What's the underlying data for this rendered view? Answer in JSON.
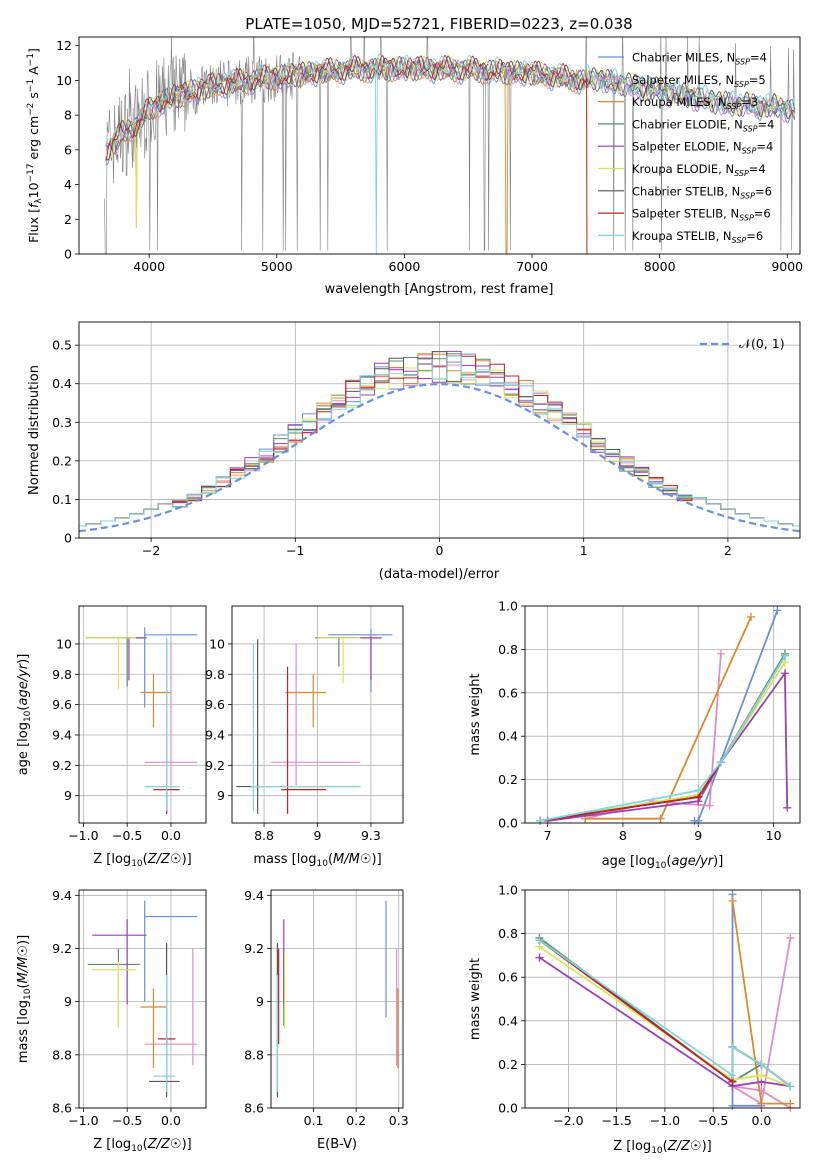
{
  "figure_title": "PLATE=1050, MJD=52721, FIBERID=0223, z=0.038",
  "model_colors": [
    "#6a8fdb",
    "#e38cc4",
    "#d98a2e",
    "#5a8c6a",
    "#9c3fb4",
    "#d6e65a",
    "#555555",
    "#c0202a",
    "#7fd6dd"
  ],
  "chart_data": [
    {
      "id": "spectrum",
      "type": "line",
      "title": "PLATE=1050, MJD=52721, FIBERID=0223, z=0.038",
      "xlabel": "wavelength [Angstrom, rest frame]",
      "ylabel": "Flux [f_λ 10^-17 erg cm^-2 s^-1 A^-1]",
      "xlim": [
        3450,
        9100
      ],
      "ylim": [
        0,
        12.5
      ],
      "xticks": [
        4000,
        5000,
        6000,
        7000,
        8000,
        9000
      ],
      "yticks": [
        0,
        2,
        4,
        6,
        8,
        10,
        12
      ],
      "grid": false,
      "legend_position": "top-right",
      "legend": [
        {
          "label": "Chabrier MILES, N",
          "sub": "SSP",
          "suffix": "=4"
        },
        {
          "label": "Salpeter MILES, N",
          "sub": "SSP",
          "suffix": "=5"
        },
        {
          "label": "Kroupa MILES, N",
          "sub": "SSP",
          "suffix": "=3"
        },
        {
          "label": "Chabrier ELODIE, N",
          "sub": "SSP",
          "suffix": "=4"
        },
        {
          "label": "Salpeter ELODIE, N",
          "sub": "SSP",
          "suffix": "=4"
        },
        {
          "label": "Kroupa ELODIE, N",
          "sub": "SSP",
          "suffix": "=4"
        },
        {
          "label": "Chabrier STELIB, N",
          "sub": "SSP",
          "suffix": "=6"
        },
        {
          "label": "Salpeter STELIB, N",
          "sub": "SSP",
          "suffix": "=6"
        },
        {
          "label": "Kroupa STELIB, N",
          "sub": "SSP",
          "suffix": "=6"
        }
      ],
      "data_color": "#808080",
      "continuum": {
        "wavelength": [
          3650,
          3700,
          3800,
          3900,
          4000,
          4100,
          4300,
          4500,
          5000,
          5500,
          6000,
          6500,
          7000,
          7400,
          7500,
          8000,
          8500,
          9000,
          9050
        ],
        "flux": [
          5.8,
          6.2,
          7.0,
          7.4,
          8.3,
          8.8,
          9.3,
          9.7,
          10.2,
          10.6,
          10.7,
          10.6,
          10.4,
          10.0,
          10.1,
          9.4,
          8.7,
          8.4,
          8.3
        ]
      },
      "model_cutoffs": {
        "x": [
          3660,
          3900,
          5780,
          6800,
          7430
        ]
      }
    },
    {
      "id": "residuals",
      "type": "histogram",
      "xlabel": "(data-model)/error",
      "ylabel": "Normed distribution",
      "xlim": [
        -2.5,
        2.5
      ],
      "ylim": [
        0,
        0.56
      ],
      "xticks": [
        -2,
        -1,
        0,
        1,
        2
      ],
      "yticks": [
        0.0,
        0.1,
        0.2,
        0.3,
        0.4,
        0.5
      ],
      "grid": true,
      "bin_width": 0.1,
      "reference_curve": {
        "label": "𝒩(0, 1)",
        "type": "normal",
        "mean": 0,
        "sigma": 1,
        "color": "#6a8fdb",
        "dash": true
      },
      "legend_position": "top-right"
    },
    {
      "id": "age-vs-Z",
      "type": "errorbar",
      "xlabel": "Z [log10(Z/Z☉)]",
      "ylabel": "age [log10(age/yr)]",
      "xlim": [
        -1.05,
        0.4
      ],
      "ylim": [
        8.82,
        10.25
      ],
      "xticks": [
        -1.0,
        -0.5,
        0.0
      ],
      "yticks": [
        9.0,
        9.2,
        9.4,
        9.6,
        9.8,
        10.0
      ],
      "grid": true,
      "points": [
        {
          "c": 0,
          "x": -0.3,
          "y": 10.06,
          "xl": -0.3,
          "xh": 0.3,
          "yl": 9.58,
          "yh": 10.11
        },
        {
          "c": 1,
          "x": 0.0,
          "y": 9.22,
          "xl": -0.3,
          "xh": 0.3,
          "yl": 9.07,
          "yh": 10.02
        },
        {
          "c": 2,
          "x": -0.2,
          "y": 9.68,
          "xl": -0.35,
          "xh": 0.0,
          "yl": 9.45,
          "yh": 9.8
        },
        {
          "c": 3,
          "x": -0.5,
          "y": 10.04,
          "xl": -0.98,
          "xh": -0.28,
          "yl": 9.72,
          "yh": 10.04
        },
        {
          "c": 4,
          "x": -0.48,
          "y": 10.04,
          "xl": -0.93,
          "xh": -0.28,
          "yl": 9.76,
          "yh": 10.04
        },
        {
          "c": 5,
          "x": -0.6,
          "y": 10.04,
          "xl": -0.98,
          "xh": -0.4,
          "yl": 9.7,
          "yh": 10.04
        },
        {
          "c": 6,
          "x": -0.05,
          "y": 9.06,
          "xl": -0.3,
          "xh": 0.05,
          "yl": 8.88,
          "yh": 10.03
        },
        {
          "c": 7,
          "x": -0.05,
          "y": 9.04,
          "xl": -0.2,
          "xh": 0.1,
          "yl": 8.88,
          "yh": 9.04
        },
        {
          "c": 8,
          "x": -0.05,
          "y": 9.06,
          "xl": -0.3,
          "xh": 0.1,
          "yl": 8.9,
          "yh": 10.04
        }
      ]
    },
    {
      "id": "age-vs-mass",
      "type": "errorbar",
      "xlabel": "mass [log10(M/M☉)]",
      "ylabel": "",
      "xlim": [
        8.6,
        9.4
      ],
      "ylim": [
        8.82,
        10.25
      ],
      "xticks": [
        8.75,
        9.0,
        9.25
      ],
      "yticks": [
        9.0,
        9.2,
        9.4,
        9.6,
        9.8,
        10.0
      ],
      "grid": true,
      "points": [
        {
          "c": 0,
          "x": 9.25,
          "y": 10.06,
          "xl": 9.05,
          "xh": 9.35,
          "yl": 9.68,
          "yh": 10.1
        },
        {
          "c": 1,
          "x": 8.9,
          "y": 9.22,
          "xl": 8.78,
          "xh": 9.2,
          "yl": 9.07,
          "yh": 10.0
        },
        {
          "c": 2,
          "x": 8.98,
          "y": 9.68,
          "xl": 8.85,
          "xh": 9.04,
          "yl": 9.45,
          "yh": 9.8
        },
        {
          "c": 3,
          "x": 9.1,
          "y": 10.04,
          "xl": 8.99,
          "xh": 9.18,
          "yl": 9.85,
          "yh": 10.04
        },
        {
          "c": 4,
          "x": 9.25,
          "y": 10.04,
          "xl": 9.0,
          "xh": 9.3,
          "yl": 9.76,
          "yh": 10.04
        },
        {
          "c": 5,
          "x": 9.12,
          "y": 10.04,
          "xl": 9.0,
          "xh": 9.2,
          "yl": 9.74,
          "yh": 10.04
        },
        {
          "c": 6,
          "x": 8.72,
          "y": 9.06,
          "xl": 8.62,
          "xh": 9.2,
          "yl": 8.88,
          "yh": 10.03
        },
        {
          "c": 7,
          "x": 8.86,
          "y": 9.04,
          "xl": 8.83,
          "xh": 9.04,
          "yl": 8.88,
          "yh": 9.85
        },
        {
          "c": 8,
          "x": 8.7,
          "y": 9.06,
          "xl": 8.69,
          "xh": 9.2,
          "yl": 8.9,
          "yh": 10.0
        }
      ]
    },
    {
      "id": "weight-vs-age",
      "type": "line",
      "xlabel": "age [log10(age/yr)]",
      "ylabel": "mass weight",
      "xlim": [
        6.7,
        10.35
      ],
      "ylim": [
        0,
        1
      ],
      "xticks": [
        7,
        8,
        9,
        10
      ],
      "yticks": [
        0.0,
        0.2,
        0.4,
        0.6,
        0.8,
        1.0
      ],
      "grid": true,
      "series": [
        {
          "c": 0,
          "x": [
            8.95,
            9.0,
            10.05
          ],
          "y": [
            0.01,
            0.01,
            0.98
          ]
        },
        {
          "c": 1,
          "x": [
            7.5,
            8.4,
            9.15,
            9.3
          ],
          "y": [
            0.02,
            0.1,
            0.08,
            0.78
          ]
        },
        {
          "c": 2,
          "x": [
            7.5,
            8.5,
            9.7
          ],
          "y": [
            0.02,
            0.02,
            0.95
          ]
        },
        {
          "c": 3,
          "x": [
            6.9,
            9.0,
            9.3,
            10.15
          ],
          "y": [
            0.01,
            0.12,
            0.28,
            0.78
          ]
        },
        {
          "c": 4,
          "x": [
            7.0,
            9.0,
            9.3,
            10.15,
            10.18
          ],
          "y": [
            0.01,
            0.1,
            0.28,
            0.69,
            0.07
          ]
        },
        {
          "c": 5,
          "x": [
            6.9,
            9.0,
            9.3,
            10.15
          ],
          "y": [
            0.01,
            0.13,
            0.28,
            0.74
          ]
        },
        {
          "c": 6,
          "x": [
            6.9,
            9.0,
            9.3,
            10.15
          ],
          "y": [
            0.01,
            0.12,
            0.28,
            0.77
          ]
        },
        {
          "c": 7,
          "x": [
            6.9,
            9.0,
            9.3,
            10.15
          ],
          "y": [
            0.01,
            0.12,
            0.28,
            0.77
          ]
        },
        {
          "c": 8,
          "x": [
            6.9,
            9.0,
            9.3,
            10.15
          ],
          "y": [
            0.01,
            0.15,
            0.28,
            0.77
          ]
        }
      ]
    },
    {
      "id": "mass-vs-Z",
      "type": "errorbar",
      "xlabel": "Z [log10(Z/Z☉)]",
      "ylabel": "mass [log10(M/M☉)]",
      "xlim": [
        -1.05,
        0.4
      ],
      "ylim": [
        8.6,
        9.42
      ],
      "xticks": [
        -1.0,
        -0.5,
        0.0
      ],
      "yticks": [
        8.6,
        8.8,
        9.0,
        9.2,
        9.4
      ],
      "grid": true,
      "points": [
        {
          "c": 0,
          "x": -0.3,
          "y": 9.32,
          "xl": -0.3,
          "xh": 0.3,
          "yl": 9.0,
          "yh": 9.38
        },
        {
          "c": 1,
          "x": 0.25,
          "y": 8.84,
          "xl": -0.3,
          "xh": 0.3,
          "yl": 8.76,
          "yh": 9.2
        },
        {
          "c": 2,
          "x": -0.2,
          "y": 8.98,
          "xl": -0.35,
          "xh": -0.05,
          "yl": 8.75,
          "yh": 9.05
        },
        {
          "c": 3,
          "x": -0.6,
          "y": 9.14,
          "xl": -0.95,
          "xh": -0.35,
          "yl": 8.91,
          "yh": 9.2
        },
        {
          "c": 4,
          "x": -0.5,
          "y": 9.25,
          "xl": -0.9,
          "xh": -0.28,
          "yl": 8.99,
          "yh": 9.31
        },
        {
          "c": 5,
          "x": -0.6,
          "y": 9.12,
          "xl": -0.9,
          "xh": -0.4,
          "yl": 8.9,
          "yh": 9.15
        },
        {
          "c": 6,
          "x": -0.05,
          "y": 8.7,
          "xl": -0.25,
          "xh": 0.1,
          "yl": 8.64,
          "yh": 9.22
        },
        {
          "c": 7,
          "x": -0.05,
          "y": 8.86,
          "xl": -0.15,
          "xh": 0.05,
          "yl": 8.84,
          "yh": 8.86
        },
        {
          "c": 8,
          "x": -0.05,
          "y": 8.72,
          "xl": -0.2,
          "xh": 0.05,
          "yl": 8.66,
          "yh": 9.1
        }
      ]
    },
    {
      "id": "mass-vs-EBV",
      "type": "errorbar",
      "xlabel": "E(B-V)",
      "ylabel": "",
      "xlim": [
        0.0,
        0.31
      ],
      "ylim": [
        8.6,
        9.42
      ],
      "xticks": [
        0.1,
        0.2,
        0.3
      ],
      "yticks": [
        8.6,
        8.8,
        9.0,
        9.2,
        9.4
      ],
      "grid": true,
      "points": [
        {
          "c": 0,
          "x": 0.27,
          "y": 9.1,
          "xl": 0.27,
          "xh": 0.27,
          "yl": 8.94,
          "yh": 9.38
        },
        {
          "c": 1,
          "x": 0.295,
          "y": 9.0,
          "xl": 0.295,
          "xh": 0.295,
          "yl": 8.76,
          "yh": 9.2
        },
        {
          "c": 2,
          "x": 0.298,
          "y": 8.9,
          "xl": 0.298,
          "xh": 0.298,
          "yl": 8.75,
          "yh": 9.05
        },
        {
          "c": 3,
          "x": 0.03,
          "y": 9.15,
          "xl": 0.03,
          "xh": 0.03,
          "yl": 8.91,
          "yh": 9.2
        },
        {
          "c": 4,
          "x": 0.03,
          "y": 9.25,
          "xl": 0.03,
          "xh": 0.03,
          "yl": 8.99,
          "yh": 9.31
        },
        {
          "c": 5,
          "x": 0.032,
          "y": 9.1,
          "xl": 0.032,
          "xh": 0.032,
          "yl": 8.9,
          "yh": 9.19
        },
        {
          "c": 6,
          "x": 0.015,
          "y": 8.8,
          "xl": 0.015,
          "xh": 0.015,
          "yl": 8.64,
          "yh": 9.22
        },
        {
          "c": 7,
          "x": 0.018,
          "y": 8.85,
          "xl": 0.018,
          "xh": 0.018,
          "yl": 8.84,
          "yh": 9.2
        },
        {
          "c": 8,
          "x": 0.015,
          "y": 8.72,
          "xl": 0.015,
          "xh": 0.015,
          "yl": 8.66,
          "yh": 9.1
        }
      ]
    },
    {
      "id": "weight-vs-Z",
      "type": "line",
      "xlabel": "Z [log10(Z/Z☉)]",
      "ylabel": "mass weight",
      "xlim": [
        -2.45,
        0.4
      ],
      "ylim": [
        0,
        1
      ],
      "xticks": [
        -2.0,
        -1.5,
        -1.0,
        -0.5,
        0.0
      ],
      "yticks": [
        0.0,
        0.2,
        0.4,
        0.6,
        0.8,
        1.0
      ],
      "grid": true,
      "series": [
        {
          "c": 0,
          "x": [
            -0.3,
            -0.3,
            0.0
          ],
          "y": [
            0.98,
            0.01,
            0.01
          ]
        },
        {
          "c": 1,
          "x": [
            0.3,
            0.0,
            -0.3,
            0.0,
            0.3
          ],
          "y": [
            0.78,
            0.02,
            0.1,
            0.08,
            0.0
          ]
        },
        {
          "c": 2,
          "x": [
            -0.3,
            0.0,
            0.3
          ],
          "y": [
            0.95,
            0.02,
            0.02
          ]
        },
        {
          "c": 3,
          "x": [
            -2.3,
            -0.3,
            0.0,
            0.3
          ],
          "y": [
            0.78,
            0.12,
            0.2,
            0.1
          ]
        },
        {
          "c": 4,
          "x": [
            -2.3,
            -0.3,
            0.0,
            0.3
          ],
          "y": [
            0.69,
            0.1,
            0.12,
            0.1
          ]
        },
        {
          "c": 5,
          "x": [
            -2.3,
            -0.3,
            0.0,
            0.3
          ],
          "y": [
            0.74,
            0.13,
            0.15,
            0.1
          ]
        },
        {
          "c": 6,
          "x": [
            -2.3,
            -0.3,
            -0.3,
            0.0,
            0.3
          ],
          "y": [
            0.77,
            0.12,
            0.28,
            0.2,
            0.1
          ]
        },
        {
          "c": 7,
          "x": [
            -2.3,
            -0.3,
            -0.3,
            0.0,
            0.3
          ],
          "y": [
            0.77,
            0.12,
            0.28,
            0.2,
            0.1
          ]
        },
        {
          "c": 8,
          "x": [
            -2.3,
            -0.3,
            -0.3,
            0.0,
            0.3
          ],
          "y": [
            0.77,
            0.15,
            0.28,
            0.2,
            0.1
          ]
        }
      ]
    }
  ]
}
